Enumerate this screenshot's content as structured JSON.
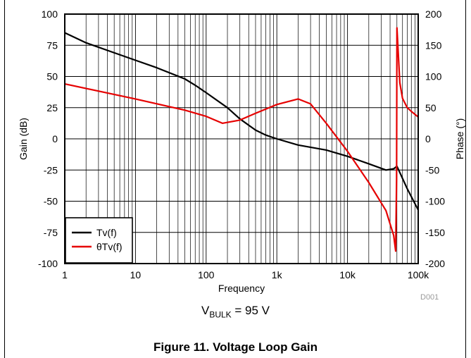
{
  "chart_data": {
    "type": "line",
    "xlabel": "Frequency",
    "ylabel_left": "Gain (dB)",
    "ylabel_right": "Phase (°)",
    "x_scale": "log",
    "xlim": [
      1,
      100000
    ],
    "ylim_left": [
      -100,
      100
    ],
    "ylim_right": [
      -200,
      200
    ],
    "x_ticks": [
      {
        "value": 1,
        "label": "1"
      },
      {
        "value": 10,
        "label": "10"
      },
      {
        "value": 100,
        "label": "100"
      },
      {
        "value": 1000,
        "label": "1k"
      },
      {
        "value": 10000,
        "label": "10k"
      },
      {
        "value": 100000,
        "label": "100k"
      }
    ],
    "y_ticks_left": [
      100,
      75,
      50,
      25,
      0,
      -25,
      -50,
      -75,
      -100
    ],
    "y_ticks_right": [
      200,
      150,
      100,
      50,
      0,
      -50,
      -100,
      -150,
      -200
    ],
    "grid": true,
    "legend_position": "bottom-left",
    "watermark": "D001",
    "series": [
      {
        "name": "Tv(f)",
        "axis": "left",
        "color": "#000000",
        "x": [
          1,
          2,
          5,
          10,
          20,
          50,
          70,
          100,
          200,
          300,
          500,
          700,
          1000,
          2000,
          5000,
          10000,
          20000,
          35000,
          45000,
          50000,
          55000,
          70000,
          100000
        ],
        "y": [
          85,
          77,
          69,
          63,
          57,
          48,
          43,
          37,
          25,
          16,
          7,
          3,
          0,
          -5,
          -9,
          -14,
          -20,
          -25,
          -24,
          -22,
          -27,
          -40,
          -57
        ]
      },
      {
        "name": "θTv(f)",
        "axis": "right",
        "color": "#e60000",
        "x": [
          1,
          10,
          50,
          100,
          170,
          300,
          500,
          1000,
          2000,
          3000,
          5000,
          10000,
          20000,
          35000,
          45000,
          48000,
          49500,
          50000,
          55000,
          60000,
          70000,
          80000,
          100000
        ],
        "y": [
          88,
          64,
          46,
          36,
          25,
          30,
          41,
          55,
          64,
          56,
          25,
          -20,
          -70,
          -115,
          -155,
          -180,
          -65,
          178,
          90,
          65,
          50,
          44,
          35
        ]
      }
    ]
  },
  "condition": {
    "prefix": "V",
    "subscript": "BULK",
    "suffix": " = 95 V"
  },
  "caption": "Figure 11. Voltage Loop Gain"
}
